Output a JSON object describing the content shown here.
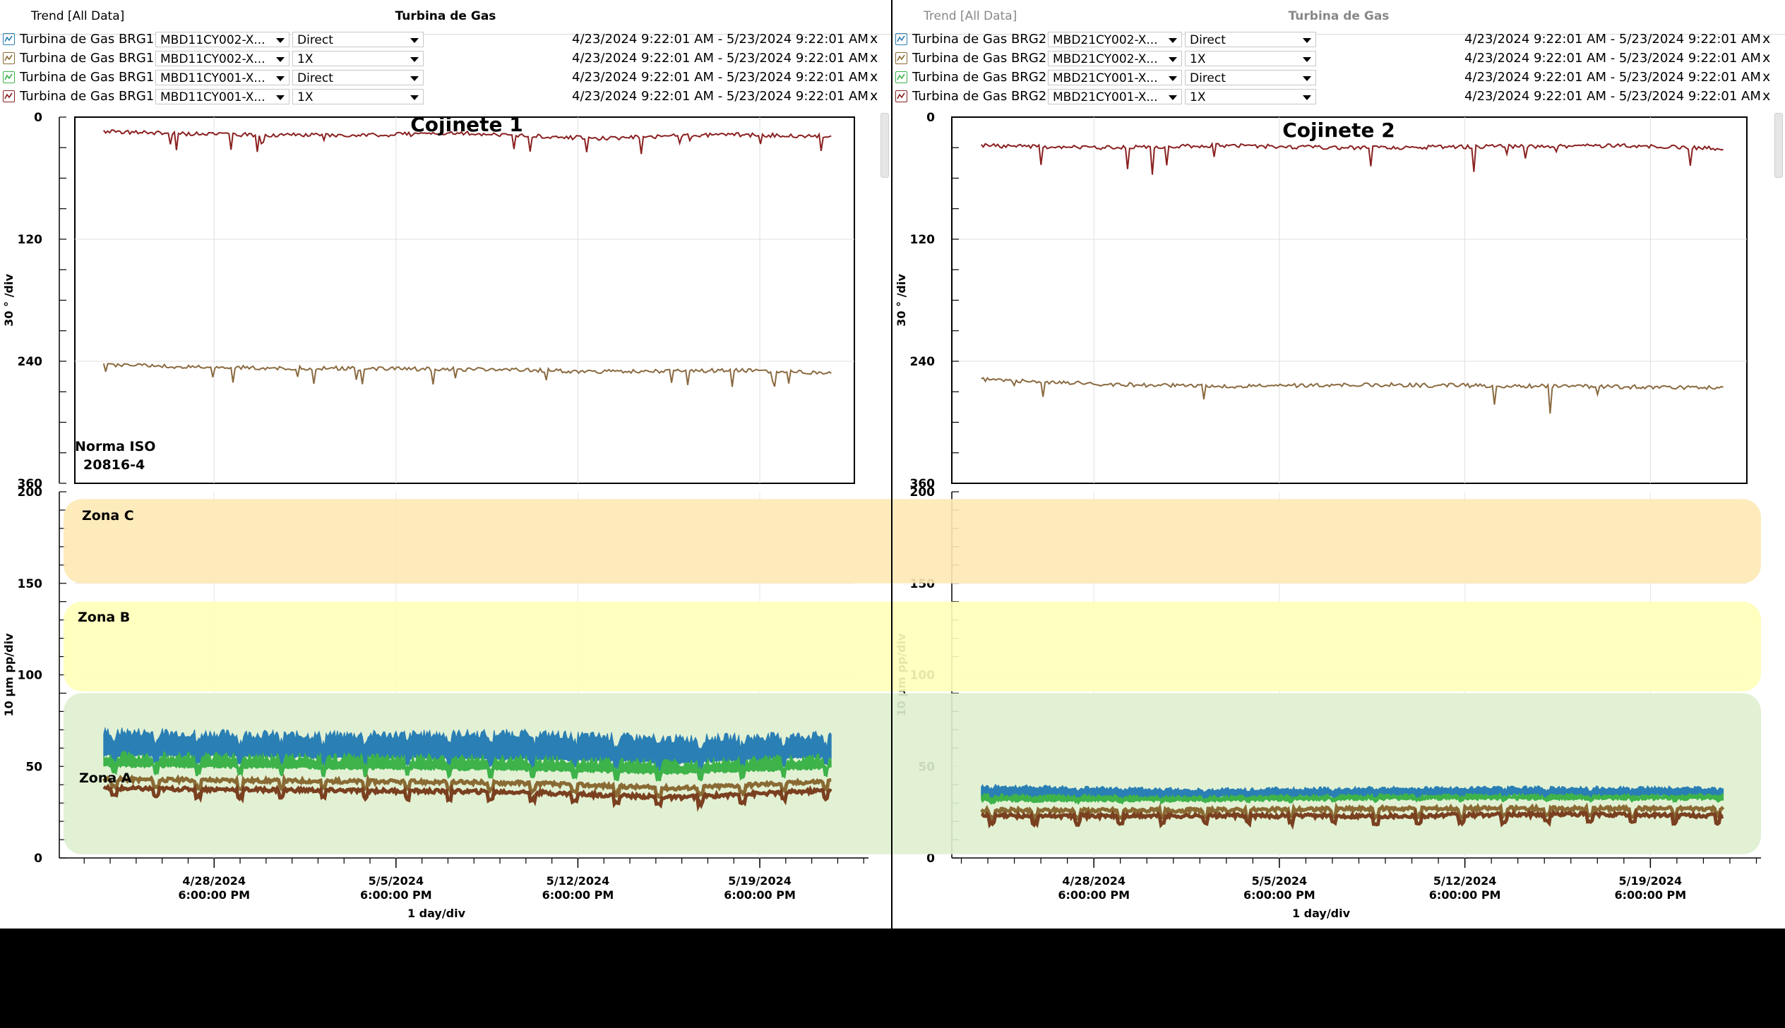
{
  "colors": {
    "direct_blue": "#2a7fb4",
    "direct_green": "#3db34a",
    "onex_tan": "#8a6a34",
    "onex_brown": "#7a4020",
    "phase_red": "#8a2020",
    "phase_tan": "#8a6a40",
    "zone_a": "#dff0cf",
    "zone_b": "#ffffb8",
    "zone_c": "#fde9b5"
  },
  "panels": [
    {
      "trend_label": "Trend  [All Data]",
      "title": "Turbina de Gas",
      "traces": [
        {
          "icon": "blue-trend-icon",
          "color": "#2a7fb4",
          "name": "Turbina de Gas BRG1",
          "tag": "MBD11CY002-X...",
          "mode": "Direct",
          "range": "4/23/2024 9:22:01 AM - 5/23/2024 9:22:01 AM",
          "remove": "x"
        },
        {
          "icon": "tan-trend-icon",
          "color": "#8a6a34",
          "name": "Turbina de Gas BRG1",
          "tag": "MBD11CY002-X...",
          "mode": "1X",
          "range": "4/23/2024 9:22:01 AM - 5/23/2024 9:22:01 AM",
          "remove": "x"
        },
        {
          "icon": "green-trend-icon",
          "color": "#3db34a",
          "name": "Turbina de Gas BRG1",
          "tag": "MBD11CY001-X...",
          "mode": "Direct",
          "range": "4/23/2024 9:22:01 AM - 5/23/2024 9:22:01 AM",
          "remove": "x"
        },
        {
          "icon": "red-trend-icon",
          "color": "#8a2020",
          "name": "Turbina de Gas BRG1",
          "tag": "MBD11CY001-X...",
          "mode": "1X",
          "range": "4/23/2024 9:22:01 AM - 5/23/2024 9:22:01 AM",
          "remove": "x"
        }
      ],
      "annotation": "Cojinete 1",
      "standard_note": [
        "Norma ISO",
        "20816-4"
      ]
    },
    {
      "trend_label": "Trend  [All Data]",
      "title": "Turbina de Gas",
      "traces": [
        {
          "icon": "blue-trend-icon",
          "color": "#2a7fb4",
          "name": "Turbina de Gas BRG2",
          "tag": "MBD21CY002-X...",
          "mode": "Direct",
          "range": "4/23/2024 9:22:01 AM - 5/23/2024 9:22:01 AM",
          "remove": "x"
        },
        {
          "icon": "tan-trend-icon",
          "color": "#8a6a34",
          "name": "Turbina de Gas BRG2",
          "tag": "MBD21CY002-X...",
          "mode": "1X",
          "range": "4/23/2024 9:22:01 AM - 5/23/2024 9:22:01 AM",
          "remove": "x"
        },
        {
          "icon": "green-trend-icon",
          "color": "#3db34a",
          "name": "Turbina de Gas BRG2",
          "tag": "MBD21CY001-X...",
          "mode": "Direct",
          "range": "4/23/2024 9:22:01 AM - 5/23/2024 9:22:01 AM",
          "remove": "x"
        },
        {
          "icon": "red-trend-icon",
          "color": "#8a2020",
          "name": "Turbina de Gas BRG2",
          "tag": "MBD21CY001-X...",
          "mode": "1X",
          "range": "4/23/2024 9:22:01 AM - 5/23/2024 9:22:01 AM",
          "remove": "x"
        }
      ],
      "annotation": "Cojinete 2"
    }
  ],
  "zones": [
    {
      "label": "Zona C",
      "from": 150,
      "to": 196
    },
    {
      "label": "Zona B",
      "from": 91,
      "to": 140
    },
    {
      "label": "Zona A",
      "from": 2,
      "to": 90
    }
  ],
  "chart_data": [
    {
      "type": "line",
      "panel": "Cojinete 1",
      "ylabel": "30 ° /div",
      "ylim": [
        0,
        360
      ],
      "y_reversed": true,
      "yticks": [
        "0",
        "120",
        "240",
        "360"
      ],
      "xlim": [
        "2024-04-23T09:22",
        "2024-05-23T09:22"
      ],
      "grid": true,
      "series": [
        {
          "color": "#8a2020",
          "x": [
            "2024-04-24",
            "2024-04-28",
            "2024-05-03",
            "2024-05-08",
            "2024-05-13",
            "2024-05-18",
            "2024-05-22"
          ],
          "values": [
            14,
            17,
            18,
            16,
            21,
            17,
            19
          ]
        },
        {
          "color": "#8a6a40",
          "x": [
            "2024-04-24",
            "2024-04-28",
            "2024-05-03",
            "2024-05-08",
            "2024-05-13",
            "2024-05-18",
            "2024-05-22"
          ],
          "values": [
            243,
            246,
            247,
            248,
            250,
            249,
            251
          ]
        }
      ]
    },
    {
      "type": "line",
      "panel": "Cojinete 1",
      "ylabel": "10 µm pp/div",
      "ylim": [
        0,
        200
      ],
      "yticks": [
        "0",
        "50",
        "100",
        "150",
        "200"
      ],
      "xlim": [
        "2024-04-23T09:22",
        "2024-05-23T09:22"
      ],
      "xticks": [
        [
          "4/28/2024",
          "6:00:00 PM"
        ],
        [
          "5/5/2024",
          "6:00:00 PM"
        ],
        [
          "5/12/2024",
          "6:00:00 PM"
        ],
        [
          "5/19/2024",
          "6:00:00 PM"
        ]
      ],
      "xlabel": "1 day/div",
      "grid": true,
      "series": [
        {
          "color": "#2a7fb4",
          "band": true,
          "x": [
            "2024-04-24",
            "2024-05-02",
            "2024-05-10",
            "2024-05-16",
            "2024-05-22"
          ],
          "low": [
            56,
            55,
            54,
            52,
            55
          ],
          "high": [
            68,
            66,
            67,
            64,
            66
          ]
        },
        {
          "color": "#3db34a",
          "band": true,
          "x": [
            "2024-04-24",
            "2024-05-02",
            "2024-05-10",
            "2024-05-16",
            "2024-05-22"
          ],
          "low": [
            50,
            49,
            48,
            46,
            49
          ],
          "high": [
            55,
            54,
            53,
            51,
            54
          ]
        },
        {
          "color": "#8a6a34",
          "x": [
            "2024-04-24",
            "2024-05-02",
            "2024-05-10",
            "2024-05-16",
            "2024-05-22"
          ],
          "values": [
            43,
            42,
            41,
            38,
            42
          ]
        },
        {
          "color": "#7a4020",
          "x": [
            "2024-04-24",
            "2024-05-02",
            "2024-05-10",
            "2024-05-16",
            "2024-05-22"
          ],
          "values": [
            38,
            37,
            36,
            33,
            37
          ]
        }
      ]
    },
    {
      "type": "line",
      "panel": "Cojinete 2",
      "ylabel": "30 ° /div",
      "ylim": [
        0,
        360
      ],
      "y_reversed": true,
      "yticks": [
        "0",
        "120",
        "240",
        "360"
      ],
      "xlim": [
        "2024-04-23T09:22",
        "2024-05-23T09:22"
      ],
      "grid": true,
      "series": [
        {
          "color": "#8a2020",
          "x": [
            "2024-04-24",
            "2024-04-28",
            "2024-05-03",
            "2024-05-08",
            "2024-05-13",
            "2024-05-18",
            "2024-05-22"
          ],
          "values": [
            28,
            30,
            28,
            30,
            29,
            28,
            31
          ]
        },
        {
          "color": "#8a6a40",
          "x": [
            "2024-04-24",
            "2024-04-28",
            "2024-05-03",
            "2024-05-08",
            "2024-05-13",
            "2024-05-18",
            "2024-05-22"
          ],
          "values": [
            258,
            262,
            265,
            263,
            264,
            265,
            266
          ]
        }
      ]
    },
    {
      "type": "line",
      "panel": "Cojinete 2",
      "ylabel": "10 µm pp/div",
      "ylim": [
        0,
        200
      ],
      "yticks": [
        "0",
        "50",
        "100",
        "150",
        "200"
      ],
      "xlim": [
        "2024-04-23T09:22",
        "2024-05-23T09:22"
      ],
      "xticks": [
        [
          "4/28/2024",
          "6:00:00 PM"
        ],
        [
          "5/5/2024",
          "6:00:00 PM"
        ],
        [
          "5/12/2024",
          "6:00:00 PM"
        ],
        [
          "5/19/2024",
          "6:00:00 PM"
        ]
      ],
      "xlabel": "1 day/div",
      "grid": true,
      "series": [
        {
          "color": "#2a7fb4",
          "band": true,
          "x": [
            "2024-04-24",
            "2024-05-02",
            "2024-05-10",
            "2024-05-16",
            "2024-05-22"
          ],
          "low": [
            33,
            33,
            34,
            34,
            34
          ],
          "high": [
            39,
            37,
            38,
            38,
            38
          ]
        },
        {
          "color": "#3db34a",
          "band": true,
          "x": [
            "2024-04-24",
            "2024-05-02",
            "2024-05-10",
            "2024-05-16",
            "2024-05-22"
          ],
          "low": [
            31,
            31,
            32,
            32,
            32
          ],
          "high": [
            34,
            33,
            34,
            34,
            34
          ]
        },
        {
          "color": "#8a6a34",
          "x": [
            "2024-04-24",
            "2024-05-02",
            "2024-05-10",
            "2024-05-16",
            "2024-05-22"
          ],
          "values": [
            26,
            26,
            27,
            27,
            27
          ]
        },
        {
          "color": "#7a4020",
          "x": [
            "2024-04-24",
            "2024-05-02",
            "2024-05-10",
            "2024-05-16",
            "2024-05-22"
          ],
          "values": [
            23,
            23,
            23,
            24,
            23
          ]
        }
      ]
    }
  ]
}
